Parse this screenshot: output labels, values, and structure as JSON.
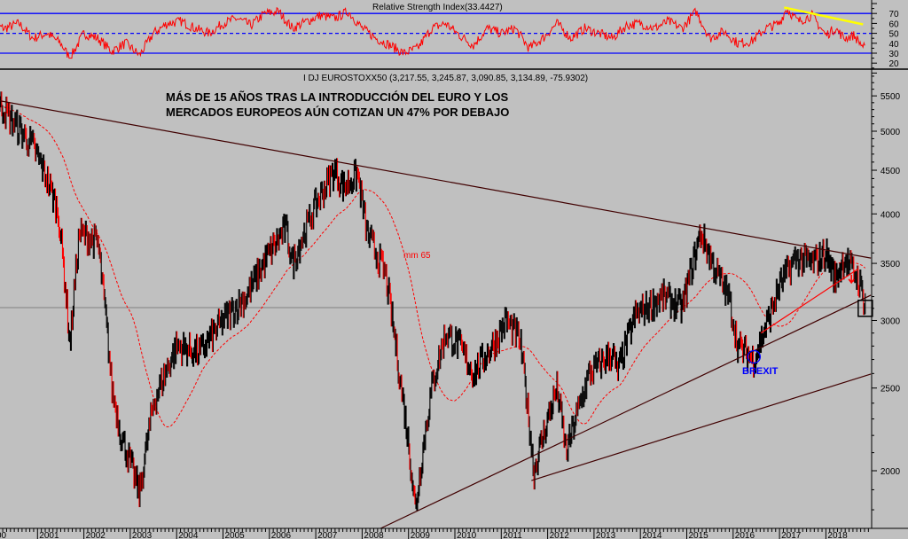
{
  "chart_data": [
    {
      "type": "line",
      "title": "Relative Strength Index(33.4427)",
      "ylim": [
        10,
        80
      ],
      "yticks": [
        70,
        60,
        50,
        40,
        30,
        20
      ],
      "levels": {
        "upper": 70,
        "mid": 50,
        "lower": 30
      },
      "x": [
        2000.0,
        2000.3,
        2000.6,
        2000.9,
        2001.2,
        2001.5,
        2001.7,
        2002.0,
        2002.3,
        2002.6,
        2002.9,
        2003.2,
        2003.5,
        2003.8,
        2004.1,
        2004.4,
        2004.7,
        2005.0,
        2005.3,
        2005.6,
        2005.9,
        2006.2,
        2006.5,
        2006.8,
        2007.1,
        2007.4,
        2007.7,
        2008.0,
        2008.3,
        2008.6,
        2008.9,
        2009.2,
        2009.5,
        2009.8,
        2010.1,
        2010.4,
        2010.7,
        2011.0,
        2011.3,
        2011.6,
        2011.9,
        2012.2,
        2012.5,
        2012.8,
        2013.1,
        2013.4,
        2013.7,
        2014.0,
        2014.3,
        2014.6,
        2014.9,
        2015.2,
        2015.5,
        2015.8,
        2016.1,
        2016.4,
        2016.7,
        2017.0,
        2017.15,
        2017.4,
        2017.7,
        2018.0,
        2018.2,
        2018.4,
        2018.6,
        2018.85
      ],
      "values": [
        58,
        55,
        60,
        45,
        50,
        40,
        25,
        50,
        45,
        32,
        40,
        28,
        50,
        60,
        62,
        55,
        50,
        60,
        65,
        58,
        70,
        72,
        55,
        62,
        68,
        65,
        72,
        55,
        45,
        38,
        30,
        35,
        55,
        60,
        48,
        38,
        55,
        50,
        55,
        35,
        45,
        60,
        45,
        55,
        50,
        45,
        58,
        60,
        55,
        62,
        55,
        72,
        45,
        52,
        40,
        42,
        55,
        60,
        75,
        62,
        68,
        48,
        55,
        45,
        48,
        34
      ],
      "trendline": {
        "color": "#ffff00",
        "from": [
          2017.1,
          76
        ],
        "to": [
          2018.8,
          59
        ]
      }
    },
    {
      "type": "line",
      "series_name": "DJ EUROSTOXX50",
      "header": "I DJ EUROSTOXX50 (3,217.55, 3,245.87, 3,090.85, 3,134.89, -75.9302)",
      "annotation_title": [
        "MÁS DE 15 AÑOS TRAS LA INTRODUCCIÓN DEL EURO Y LOS",
        "MERCADOS EUROPEOS AÚN COTIZAN UN 47%  POR DEBAJO"
      ],
      "ma_label": "mm 65",
      "brexit_label": "BREXIT",
      "yscale": "log",
      "ylim": [
        1700,
        5900
      ],
      "yticks": [
        5500,
        5000,
        4500,
        4000,
        3500,
        3000,
        2500,
        2000
      ],
      "xticks": [
        "00",
        "2001",
        "2002",
        "2003",
        "2004",
        "2005",
        "2006",
        "2007",
        "2008",
        "2009",
        "2010",
        "2011",
        "2012",
        "2013",
        "2014",
        "2015",
        "2016",
        "2017",
        "2018"
      ],
      "x": [
        2000.0,
        2000.1,
        2000.5,
        2000.9,
        2001.2,
        2001.45,
        2001.7,
        2001.9,
        2002.3,
        2002.6,
        2002.8,
        2003.2,
        2003.5,
        2004.0,
        2004.5,
        2005.0,
        2005.5,
        2006.0,
        2006.35,
        2006.5,
        2007.0,
        2007.4,
        2007.6,
        2007.9,
        2008.1,
        2008.5,
        2008.8,
        2009.15,
        2009.5,
        2009.8,
        2010.1,
        2010.4,
        2010.9,
        2011.1,
        2011.4,
        2011.7,
        2012.0,
        2012.2,
        2012.4,
        2012.9,
        2013.4,
        2013.5,
        2013.9,
        2014.5,
        2014.9,
        2015.3,
        2015.6,
        2015.9,
        2016.1,
        2016.45,
        2016.8,
        2017.0,
        2017.35,
        2017.7,
        2018.0,
        2018.2,
        2018.4,
        2018.7,
        2018.85
      ],
      "values": [
        5300,
        5450,
        5100,
        4800,
        4400,
        4000,
        2800,
        3800,
        3700,
        2500,
        2200,
        1880,
        2400,
        2800,
        2750,
        3000,
        3200,
        3600,
        3850,
        3500,
        4100,
        4500,
        4300,
        4450,
        3800,
        3400,
        2600,
        1800,
        2500,
        2900,
        2800,
        2600,
        2850,
        3000,
        2850,
        1990,
        2300,
        2500,
        2100,
        2600,
        2750,
        2600,
        3050,
        3200,
        3100,
        3800,
        3450,
        3200,
        2800,
        2700,
        3050,
        3300,
        3550,
        3500,
        3600,
        3350,
        3550,
        3350,
        3135
      ],
      "trendlines": [
        {
          "color": "#400000",
          "from": [
            2000.0,
            5450
          ],
          "to": [
            2018.97,
            3550
          ]
        },
        {
          "color": "#400000",
          "from": [
            2008.4,
            1712
          ],
          "to": [
            2018.97,
            3212
          ]
        },
        {
          "color": "#400000",
          "from": [
            2011.65,
            1948
          ],
          "to": [
            2018.97,
            2596
          ]
        },
        {
          "color": "#ff0000",
          "from": [
            2016.6,
            2900
          ],
          "to": [
            2018.7,
            3450
          ]
        }
      ],
      "reference_level": 3106,
      "highlight_box": [
        2018.85,
        3100
      ],
      "brexit_point": [
        2016.45,
        2720
      ],
      "arrow_point": [
        2018.55,
        3330
      ]
    }
  ]
}
